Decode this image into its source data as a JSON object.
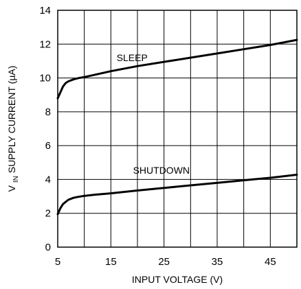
{
  "chart_data": {
    "type": "line",
    "xlabel": "INPUT VOLTAGE (V)",
    "ylabel": {
      "prefix": "V",
      "subscript": "IN",
      "rest": " SUPPLY CURRENT (µA)"
    },
    "xlim": [
      5,
      50
    ],
    "ylim": [
      0,
      14
    ],
    "xticks": [
      5,
      15,
      25,
      35,
      45
    ],
    "yticks": [
      0,
      2,
      4,
      6,
      8,
      10,
      12,
      14
    ],
    "grid": true,
    "series": [
      {
        "name": "SLEEP",
        "x": [
          5,
          5.5,
          6,
          6.5,
          7,
          8,
          9,
          10,
          15,
          20,
          25,
          30,
          35,
          40,
          45,
          50
        ],
        "y": [
          8.8,
          9.15,
          9.5,
          9.7,
          9.8,
          9.92,
          10.0,
          10.05,
          10.4,
          10.7,
          10.95,
          11.2,
          11.45,
          11.7,
          11.95,
          12.25
        ]
      },
      {
        "name": "SHUTDOWN",
        "x": [
          5,
          5.5,
          6,
          7,
          8,
          9,
          10,
          12,
          15,
          20,
          25,
          30,
          35,
          40,
          45,
          50
        ],
        "y": [
          1.95,
          2.3,
          2.55,
          2.8,
          2.92,
          2.98,
          3.03,
          3.1,
          3.18,
          3.35,
          3.5,
          3.65,
          3.8,
          3.95,
          4.1,
          4.28
        ]
      }
    ],
    "annotations": [
      {
        "text": "SLEEP",
        "x": 19,
        "y": 11.0
      },
      {
        "text": "SHUTDOWN",
        "x": 24.5,
        "y": 4.35
      }
    ]
  }
}
